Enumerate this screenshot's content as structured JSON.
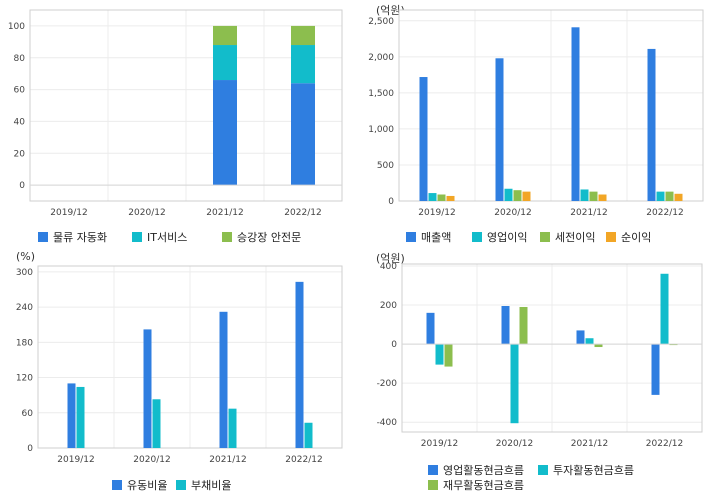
{
  "colors": {
    "blue": "#2f7ee0",
    "teal": "#12bccb",
    "green": "#8cbe4e",
    "orange": "#f2a626"
  },
  "chart_data": [
    {
      "type": "bar",
      "stacked": true,
      "categories": [
        "2019/12",
        "2020/12",
        "2021/12",
        "2022/12"
      ],
      "series": [
        {
          "name": "물류 자동화",
          "values": [
            null,
            null,
            66,
            64
          ],
          "color": "blue"
        },
        {
          "name": "IT서비스",
          "values": [
            null,
            null,
            22,
            24
          ],
          "color": "teal"
        },
        {
          "name": "승강장 안전문",
          "values": [
            null,
            null,
            12,
            12
          ],
          "color": "green"
        }
      ],
      "unit": "",
      "ylim": [
        -10,
        110
      ],
      "yticks": [
        0,
        20,
        40,
        60,
        80,
        100
      ],
      "grid": true,
      "legend": "bottom"
    },
    {
      "type": "bar",
      "categories": [
        "2019/12",
        "2020/12",
        "2021/12",
        "2022/12"
      ],
      "series": [
        {
          "name": "매출액",
          "values": [
            1720,
            1980,
            2410,
            2110
          ],
          "color": "blue"
        },
        {
          "name": "영업이익",
          "values": [
            110,
            170,
            160,
            130
          ],
          "color": "teal"
        },
        {
          "name": "세전이익",
          "values": [
            90,
            150,
            130,
            130
          ],
          "color": "green"
        },
        {
          "name": "순이익",
          "values": [
            70,
            130,
            90,
            100
          ],
          "color": "orange"
        }
      ],
      "unit": "(억원)",
      "ylim": [
        0,
        2650
      ],
      "yticks": [
        0,
        500,
        1000,
        1500,
        2000,
        2500
      ],
      "ytick_labels": [
        "0",
        "500",
        "1,000",
        "1,500",
        "2,000",
        "2,500"
      ],
      "grid": true,
      "legend": "bottom"
    },
    {
      "type": "bar",
      "categories": [
        "2019/12",
        "2020/12",
        "2021/12",
        "2022/12"
      ],
      "series": [
        {
          "name": "유동비율",
          "values": [
            110,
            202,
            232,
            283
          ],
          "color": "blue"
        },
        {
          "name": "부채비율",
          "values": [
            104,
            83,
            67,
            43
          ],
          "color": "teal"
        }
      ],
      "unit": "(%)",
      "ylim": [
        0,
        310
      ],
      "yticks": [
        0,
        60,
        120,
        180,
        240,
        300
      ],
      "grid": true,
      "legend": "bottom"
    },
    {
      "type": "bar",
      "categories": [
        "2019/12",
        "2020/12",
        "2021/12",
        "2022/12"
      ],
      "series": [
        {
          "name": "영업활동현금흐름",
          "values": [
            160,
            195,
            70,
            -260
          ],
          "color": "teal_blue"
        },
        {
          "name": "투자활동현금흐름",
          "values": [
            -105,
            -405,
            30,
            360
          ],
          "color": "teal"
        },
        {
          "name": "재무활동현금흐름",
          "values": [
            -115,
            190,
            -15,
            -5
          ],
          "color": "green"
        }
      ],
      "unit": "(억원)",
      "ylim": [
        -450,
        410
      ],
      "yticks": [
        -400,
        -200,
        0,
        200,
        400
      ],
      "grid": true,
      "legend": "bottom"
    }
  ]
}
